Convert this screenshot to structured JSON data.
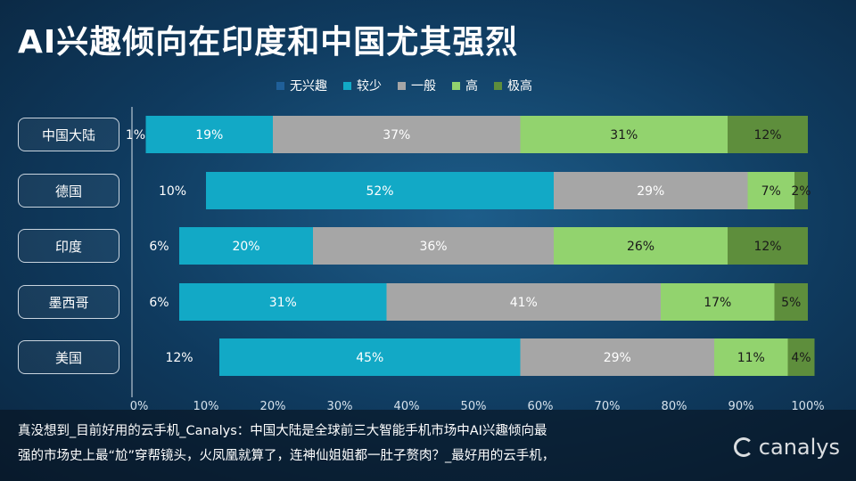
{
  "title": "AI兴趣倾向在印度和中国尤其强烈",
  "caption": {
    "line1": "真没想到_目前好用的云手机_Canalys：中国大陆是全球前三大智能手机市场中AI兴趣倾向最",
    "line2": "强的市场史上最“尬”穿帮镜头，火凤凰就算了，连神仙姐姐都一肚子赘肉？_最好用的云手机，"
  },
  "brand": "canalys",
  "chart_data": {
    "type": "bar",
    "orientation": "horizontal",
    "stacked": true,
    "title": "AI兴趣倾向在印度和中国尤其强烈",
    "categories": [
      "中国大陆",
      "德国",
      "印度",
      "墨西哥",
      "美国"
    ],
    "x_ticks": [
      "0%",
      "10%",
      "20%",
      "30%",
      "40%",
      "50%",
      "60%",
      "70%",
      "80%",
      "90%",
      "100%"
    ],
    "xlim": [
      0,
      100
    ],
    "legend_position": "top",
    "series": [
      {
        "name": "无兴趣",
        "color": "#1f5f99",
        "values": [
          1,
          10,
          6,
          6,
          12
        ]
      },
      {
        "name": "较少",
        "color": "#12a9c6",
        "values": [
          19,
          52,
          20,
          31,
          45
        ]
      },
      {
        "name": "一般",
        "color": "#a6a6a6",
        "values": [
          37,
          29,
          36,
          41,
          29
        ]
      },
      {
        "name": "高",
        "color": "#92d36e",
        "values": [
          31,
          7,
          26,
          17,
          11
        ]
      },
      {
        "name": "极高",
        "color": "#5e8e3c",
        "values": [
          12,
          2,
          12,
          5,
          4
        ]
      }
    ]
  }
}
